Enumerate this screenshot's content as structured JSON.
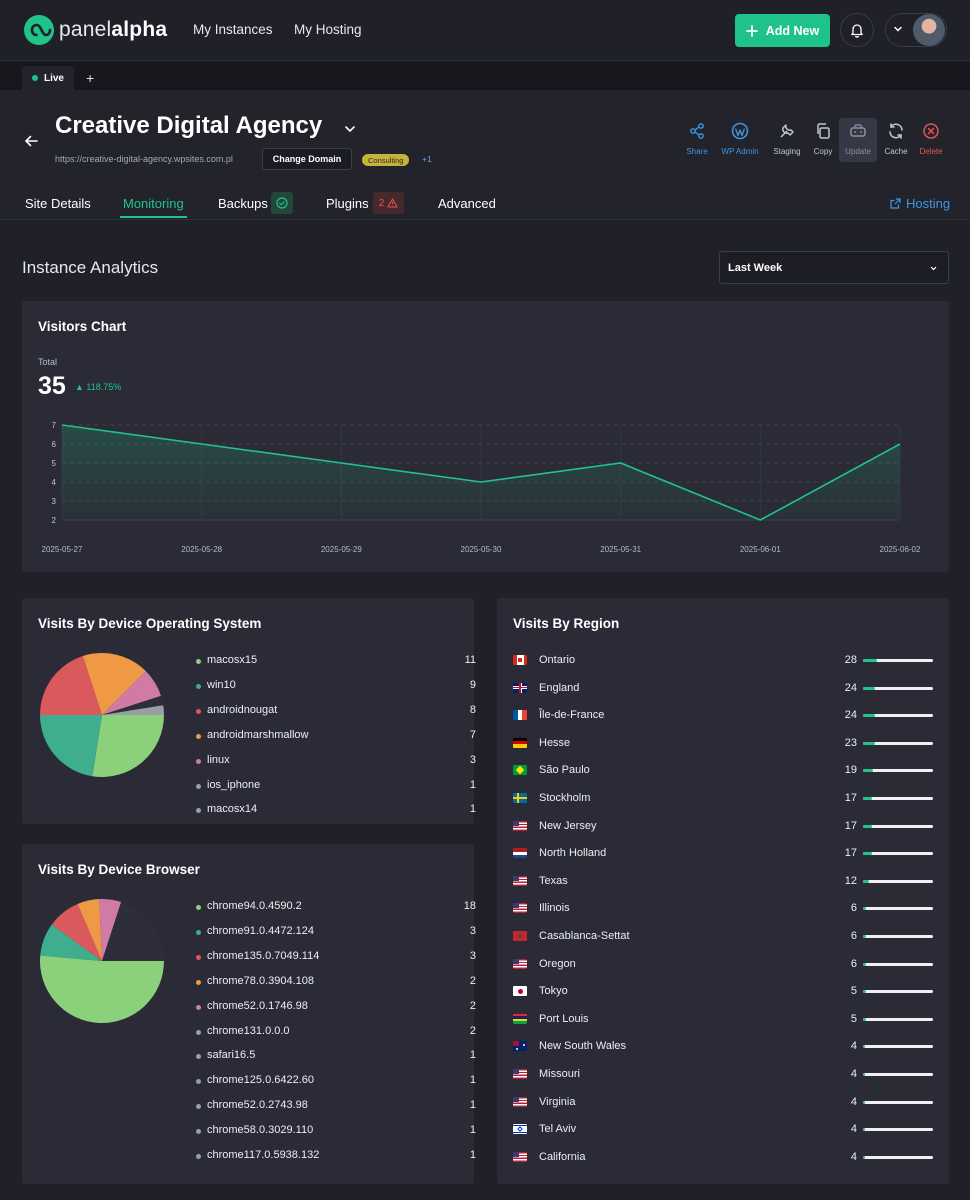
{
  "app": {
    "logo_text_regular": "panel",
    "logo_text_bold": "alpha"
  },
  "topnav": {
    "items": [
      "My Instances",
      "My Hosting"
    ],
    "add_new": "Add New"
  },
  "tabs": {
    "live": "Live"
  },
  "site": {
    "title": "Creative Digital Agency",
    "url": "https://creative-digital-agency.wpsites.com.pl",
    "change_domain": "Change Domain",
    "tag": "Consulting",
    "tag_more": "+1"
  },
  "actions": [
    {
      "label": "Share",
      "color": "#3f96e3",
      "icon": "share-icon"
    },
    {
      "label": "WP Admin",
      "color": "#3f96e3",
      "icon": "wordpress-icon"
    },
    {
      "label": "Staging",
      "color": "#c3c6cf",
      "icon": "staging-icon"
    },
    {
      "label": "Copy",
      "color": "#c3c6cf",
      "icon": "copy-icon"
    },
    {
      "label": "Update",
      "color": "#8d909c",
      "icon": "update-icon"
    },
    {
      "label": "Cache",
      "color": "#c3c6cf",
      "icon": "cache-icon"
    },
    {
      "label": "Delete",
      "color": "#e05656",
      "icon": "delete-icon"
    }
  ],
  "subnav": {
    "items": [
      "Site Details",
      "Monitoring",
      "Backups",
      "Plugins",
      "Advanced"
    ],
    "active": "Monitoring",
    "plugins_warnings": "2",
    "hosting": "Hosting"
  },
  "analytics": {
    "title": "Instance Analytics",
    "range": "Last Week"
  },
  "visitors": {
    "title": "Visitors Chart",
    "total_label": "Total",
    "total": "35",
    "change": "118.75%"
  },
  "chart_data": [
    {
      "type": "area",
      "title": "Visitors Chart",
      "x": [
        "2025-05-27",
        "2025-05-28",
        "2025-05-29",
        "2025-05-30",
        "2025-05-31",
        "2025-06-01",
        "2025-06-02"
      ],
      "values": [
        7,
        6,
        5,
        4,
        5,
        2,
        6
      ],
      "yticks": [
        "2",
        "3",
        "4",
        "5",
        "6",
        "7"
      ],
      "ylim": [
        2,
        7
      ],
      "color": "#20c38a",
      "grid": true
    },
    {
      "type": "pie",
      "title": "Visits By Device Operating System",
      "labels": [
        "macosx15",
        "win10",
        "androidnougat",
        "androidmarshmallow",
        "linux",
        "ios_iphone",
        "macosx14"
      ],
      "values": [
        11,
        9,
        8,
        7,
        3,
        1,
        1
      ],
      "colors": [
        "#8bd07a",
        "#3fae8e",
        "#d9595c",
        "#ef9944",
        "#d07ba6",
        "#2d2e3a",
        "#9a9da8"
      ]
    },
    {
      "type": "pie",
      "title": "Visits By Device Browser",
      "labels": [
        "chrome94.0.4590.2",
        "chrome91.0.4472.124",
        "chrome135.0.7049.114",
        "chrome78.0.3904.108",
        "chrome52.0.1746.98",
        "chrome131.0.0.0",
        "safari16.5",
        "chrome125.0.6422.60",
        "chrome52.0.2743.98",
        "chrome58.0.3029.110",
        "chrome117.0.5938.132"
      ],
      "values": [
        18,
        3,
        3,
        2,
        2,
        2,
        1,
        1,
        1,
        1,
        1
      ],
      "colors": [
        "#8bd07a",
        "#3fae8e",
        "#d9595c",
        "#ef9944",
        "#d07ba6",
        "#2d2e3a",
        "#2d2e3a",
        "#2d2e3a",
        "#2d2e3a",
        "#2d2e3a",
        "#2d2e3a"
      ]
    }
  ],
  "os": {
    "title": "Visits By Device Operating System",
    "dot_colors": [
      "#8bd07a",
      "#3fae8e",
      "#d9595c",
      "#ef9944",
      "#d07ba6",
      "#9a9da8",
      "#9a9da8"
    ]
  },
  "browser": {
    "title": "Visits By Device Browser",
    "dot_colors": [
      "#8bd07a",
      "#3fae8e",
      "#d9595c",
      "#ef9944",
      "#d07ba6",
      "#9a9da8",
      "#9a9da8",
      "#9a9da8",
      "#9a9da8",
      "#9a9da8",
      "#9a9da8"
    ]
  },
  "regions": {
    "title": "Visits By Region",
    "max": 28,
    "items": [
      {
        "name": "Ontario",
        "value": 28,
        "flag": "ca"
      },
      {
        "name": "England",
        "value": 24,
        "flag": "gb"
      },
      {
        "name": "Île-de-France",
        "value": 24,
        "flag": "fr"
      },
      {
        "name": "Hesse",
        "value": 23,
        "flag": "de"
      },
      {
        "name": "São Paulo",
        "value": 19,
        "flag": "br"
      },
      {
        "name": "Stockholm",
        "value": 17,
        "flag": "se"
      },
      {
        "name": "New Jersey",
        "value": 17,
        "flag": "us"
      },
      {
        "name": "North Holland",
        "value": 17,
        "flag": "nl"
      },
      {
        "name": "Texas",
        "value": 12,
        "flag": "us"
      },
      {
        "name": "Illinois",
        "value": 6,
        "flag": "us"
      },
      {
        "name": "Casablanca-Settat",
        "value": 6,
        "flag": "ma"
      },
      {
        "name": "Oregon",
        "value": 6,
        "flag": "us"
      },
      {
        "name": "Tokyo",
        "value": 5,
        "flag": "jp"
      },
      {
        "name": "Port Louis",
        "value": 5,
        "flag": "mu"
      },
      {
        "name": "New South Wales",
        "value": 4,
        "flag": "au"
      },
      {
        "name": "Missouri",
        "value": 4,
        "flag": "us"
      },
      {
        "name": "Virginia",
        "value": 4,
        "flag": "us"
      },
      {
        "name": "Tel Aviv",
        "value": 4,
        "flag": "il"
      },
      {
        "name": "California",
        "value": 4,
        "flag": "us"
      }
    ]
  }
}
